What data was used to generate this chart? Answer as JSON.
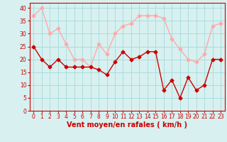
{
  "x": [
    0,
    1,
    2,
    3,
    4,
    5,
    6,
    7,
    8,
    9,
    10,
    11,
    12,
    13,
    14,
    15,
    16,
    17,
    18,
    19,
    20,
    21,
    22,
    23
  ],
  "mean_wind": [
    25,
    20,
    17,
    20,
    17,
    17,
    17,
    17,
    16,
    14,
    19,
    23,
    20,
    21,
    23,
    23,
    8,
    12,
    5,
    13,
    8,
    10,
    20,
    20
  ],
  "gust_wind": [
    37,
    40,
    30,
    32,
    26,
    20,
    20,
    17,
    26,
    22,
    30,
    33,
    34,
    37,
    37,
    37,
    36,
    28,
    24,
    20,
    19,
    22,
    33,
    34
  ],
  "mean_color": "#cc0000",
  "gust_color": "#ffaaaa",
  "bg_color": "#d8f0f0",
  "grid_color": "#aadddd",
  "xlabel": "Vent moyen/en rafales ( km/h )",
  "ylim": [
    0,
    42
  ],
  "xlim": [
    -0.5,
    23.5
  ],
  "yticks": [
    0,
    5,
    10,
    15,
    20,
    25,
    30,
    35,
    40
  ],
  "xticks": [
    0,
    1,
    2,
    3,
    4,
    5,
    6,
    7,
    8,
    9,
    10,
    11,
    12,
    13,
    14,
    15,
    16,
    17,
    18,
    19,
    20,
    21,
    22,
    23
  ],
  "marker": "D",
  "markersize": 2.5,
  "linewidth": 1.0
}
